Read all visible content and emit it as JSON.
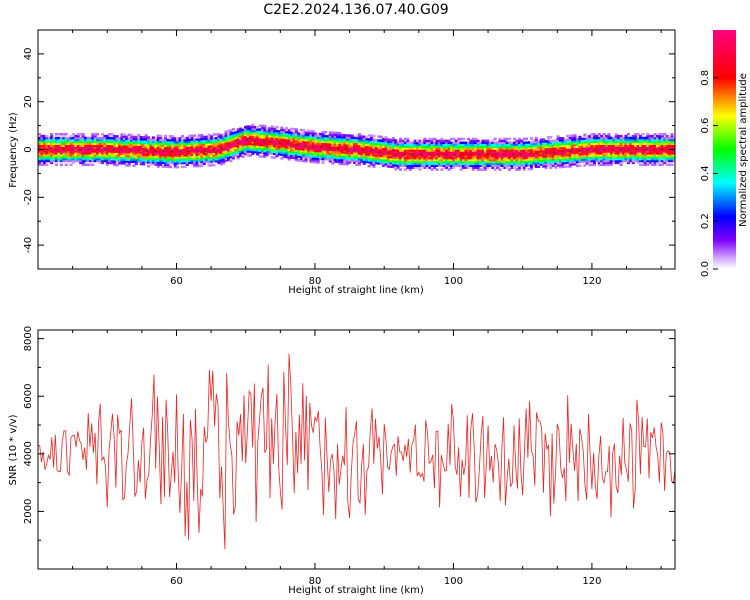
{
  "chart_data": [
    {
      "type": "heatmap",
      "title": "C2E2.2024.136.07.40.G09",
      "xlabel": "Height of straight line (km)",
      "ylabel": "Frequency (Hz)",
      "xlim": [
        40,
        132
      ],
      "ylim": [
        -50,
        50
      ],
      "xticks": [
        60,
        80,
        100,
        120
      ],
      "yticks": [
        -40,
        -20,
        0,
        20,
        40
      ],
      "ytick_labels": [
        "-40",
        "-20",
        "0",
        "20",
        "40"
      ],
      "colorbar": {
        "label": "Normalized spectral amplitude",
        "range": [
          0,
          1
        ],
        "ticks": [
          0.0,
          0.2,
          0.4,
          0.6,
          0.8
        ],
        "tick_labels": [
          "0.0",
          "0.2",
          "0.4",
          "0.6",
          "0.8"
        ],
        "colormap": [
          "#ffffff",
          "#7f00ff",
          "#0000ff",
          "#00ffff",
          "#00ff00",
          "#ffff00",
          "#ff0000",
          "#ff007f"
        ]
      },
      "signal_center_hz": [
        {
          "x": 40,
          "f": 0
        },
        {
          "x": 50,
          "f": 0
        },
        {
          "x": 60,
          "f": -1
        },
        {
          "x": 66,
          "f": 0
        },
        {
          "x": 70,
          "f": 4
        },
        {
          "x": 74,
          "f": 3
        },
        {
          "x": 80,
          "f": 1
        },
        {
          "x": 86,
          "f": 0
        },
        {
          "x": 92,
          "f": -2
        },
        {
          "x": 100,
          "f": -2
        },
        {
          "x": 110,
          "f": -2
        },
        {
          "x": 120,
          "f": 0
        },
        {
          "x": 132,
          "f": 0
        }
      ],
      "signal_halfwidth_hz": 5
    },
    {
      "type": "line",
      "xlabel": "Height of straight line (km)",
      "ylabel": "SNR (10 * v/v)",
      "xlim": [
        40,
        132
      ],
      "ylim": [
        0,
        8300
      ],
      "xticks": [
        60,
        80,
        100,
        120
      ],
      "yticks": [
        2000,
        4000,
        6000,
        8000
      ],
      "ytick_labels": [
        "2000",
        "4000",
        "6000",
        "8000"
      ],
      "color": "#ee2222",
      "series": [
        {
          "name": "SNR",
          "mean": 4000,
          "x_step": 0.25,
          "envelope": [
            {
              "x": 40,
              "amp": 600
            },
            {
              "x": 46,
              "amp": 1600
            },
            {
              "x": 50,
              "amp": 2600
            },
            {
              "x": 56,
              "amp": 2800
            },
            {
              "x": 62,
              "amp": 3000
            },
            {
              "x": 68,
              "amp": 3500
            },
            {
              "x": 72,
              "amp": 3300
            },
            {
              "x": 78,
              "amp": 3300
            },
            {
              "x": 86,
              "amp": 2400
            },
            {
              "x": 92,
              "amp": 1000
            },
            {
              "x": 96,
              "amp": 1500
            },
            {
              "x": 104,
              "amp": 2200
            },
            {
              "x": 112,
              "amp": 2400
            },
            {
              "x": 120,
              "amp": 2200
            },
            {
              "x": 126,
              "amp": 2000
            },
            {
              "x": 132,
              "amp": 1700
            }
          ]
        }
      ]
    }
  ]
}
